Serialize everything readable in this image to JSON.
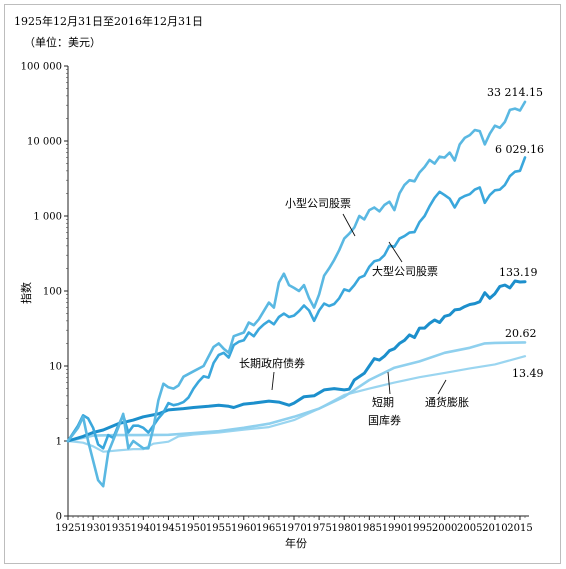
{
  "chart_data": {
    "type": "line",
    "title": "1925年12月31日至2016年12月31日",
    "subtitle": "（单位：美元）",
    "xlabel": "年份",
    "ylabel": "指数",
    "yscale": "log",
    "xlim": [
      1925,
      2016
    ],
    "ylim": [
      0,
      100000
    ],
    "x_ticks": [
      "1925",
      "1930",
      "1935",
      "1940",
      "1945",
      "1950",
      "1955",
      "1960",
      "1965",
      "1970",
      "1975",
      "1980",
      "1985",
      "1990",
      "1995",
      "2000",
      "2005",
      "2010",
      "2015"
    ],
    "y_ticks": [
      {
        "value": 100000,
        "label": "100 000"
      },
      {
        "value": 10000,
        "label": "10 000"
      },
      {
        "value": 1000,
        "label": "1 000"
      },
      {
        "value": 100,
        "label": "100"
      },
      {
        "value": 10,
        "label": "10"
      },
      {
        "value": 1,
        "label": "1"
      },
      {
        "value": 0,
        "label": "0"
      }
    ],
    "colors": {
      "small_stocks": "#5ab8e2",
      "large_stocks": "#3aa7dc",
      "long_bonds": "#1c8fcc",
      "t_bills": "#8fd0ee",
      "inflation": "#9ad5f0"
    },
    "series": [
      {
        "key": "small_stocks",
        "name": "小型公司股票",
        "end_label": "33 214.15",
        "points": [
          [
            1925,
            1
          ],
          [
            1927,
            1.5
          ],
          [
            1928,
            2.1
          ],
          [
            1929,
            1.0
          ],
          [
            1931,
            0.3
          ],
          [
            1932,
            0.25
          ],
          [
            1933,
            0.7
          ],
          [
            1935,
            1.5
          ],
          [
            1936,
            2.3
          ],
          [
            1937,
            0.8
          ],
          [
            1938,
            1.0
          ],
          [
            1940,
            0.8
          ],
          [
            1941,
            0.8
          ],
          [
            1942,
            1.5
          ],
          [
            1943,
            3.5
          ],
          [
            1944,
            5.8
          ],
          [
            1945,
            5.2
          ],
          [
            1946,
            5.0
          ],
          [
            1947,
            5.5
          ],
          [
            1948,
            7.2
          ],
          [
            1950,
            8.5
          ],
          [
            1952,
            10
          ],
          [
            1954,
            18
          ],
          [
            1955,
            20
          ],
          [
            1956,
            17
          ],
          [
            1957,
            15
          ],
          [
            1958,
            25
          ],
          [
            1960,
            28
          ],
          [
            1961,
            38
          ],
          [
            1962,
            35
          ],
          [
            1963,
            42
          ],
          [
            1965,
            70
          ],
          [
            1966,
            60
          ],
          [
            1967,
            130
          ],
          [
            1968,
            170
          ],
          [
            1969,
            120
          ],
          [
            1970,
            110
          ],
          [
            1971,
            100
          ],
          [
            1972,
            120
          ],
          [
            1973,
            80
          ],
          [
            1974,
            60
          ],
          [
            1975,
            90
          ],
          [
            1976,
            160
          ],
          [
            1977,
            200
          ],
          [
            1978,
            260
          ],
          [
            1979,
            350
          ],
          [
            1980,
            500
          ],
          [
            1981,
            580
          ],
          [
            1982,
            700
          ],
          [
            1983,
            1000
          ],
          [
            1984,
            900
          ],
          [
            1985,
            1200
          ],
          [
            1986,
            1300
          ],
          [
            1987,
            1150
          ],
          [
            1988,
            1400
          ],
          [
            1989,
            1550
          ],
          [
            1990,
            1200
          ],
          [
            1991,
            2000
          ],
          [
            1992,
            2600
          ],
          [
            1993,
            3000
          ],
          [
            1994,
            2900
          ],
          [
            1995,
            3800
          ],
          [
            1996,
            4500
          ],
          [
            1997,
            5600
          ],
          [
            1998,
            5000
          ],
          [
            1999,
            6200
          ],
          [
            2000,
            6000
          ],
          [
            2001,
            7000
          ],
          [
            2002,
            5500
          ],
          [
            2003,
            9000
          ],
          [
            2004,
            11000
          ],
          [
            2005,
            12000
          ],
          [
            2006,
            14000
          ],
          [
            2007,
            13500
          ],
          [
            2008,
            9000
          ],
          [
            2009,
            12500
          ],
          [
            2010,
            16000
          ],
          [
            2011,
            15000
          ],
          [
            2012,
            18000
          ],
          [
            2013,
            26000
          ],
          [
            2014,
            27000
          ],
          [
            2015,
            25500
          ],
          [
            2016,
            33214.15
          ]
        ]
      },
      {
        "key": "large_stocks",
        "name": "大型公司股票",
        "end_label": "6 029.16",
        "points": [
          [
            1925,
            1
          ],
          [
            1927,
            1.6
          ],
          [
            1928,
            2.2
          ],
          [
            1929,
            2.0
          ],
          [
            1930,
            1.5
          ],
          [
            1931,
            0.9
          ],
          [
            1932,
            0.8
          ],
          [
            1933,
            1.2
          ],
          [
            1934,
            1.1
          ],
          [
            1935,
            1.6
          ],
          [
            1936,
            2.2
          ],
          [
            1937,
            1.3
          ],
          [
            1938,
            1.6
          ],
          [
            1939,
            1.6
          ],
          [
            1940,
            1.5
          ],
          [
            1941,
            1.3
          ],
          [
            1942,
            1.6
          ],
          [
            1943,
            2.0
          ],
          [
            1944,
            2.4
          ],
          [
            1945,
            3.2
          ],
          [
            1946,
            3.0
          ],
          [
            1947,
            3.1
          ],
          [
            1948,
            3.3
          ],
          [
            1949,
            3.8
          ],
          [
            1950,
            5.0
          ],
          [
            1951,
            6.2
          ],
          [
            1952,
            7.3
          ],
          [
            1953,
            7.0
          ],
          [
            1954,
            11
          ],
          [
            1955,
            14
          ],
          [
            1956,
            15
          ],
          [
            1957,
            13
          ],
          [
            1958,
            19
          ],
          [
            1959,
            21
          ],
          [
            1960,
            22
          ],
          [
            1961,
            28
          ],
          [
            1962,
            25
          ],
          [
            1963,
            31
          ],
          [
            1964,
            36
          ],
          [
            1965,
            40
          ],
          [
            1966,
            36
          ],
          [
            1967,
            45
          ],
          [
            1968,
            50
          ],
          [
            1969,
            45
          ],
          [
            1970,
            47
          ],
          [
            1971,
            54
          ],
          [
            1972,
            64
          ],
          [
            1973,
            55
          ],
          [
            1974,
            40
          ],
          [
            1975,
            55
          ],
          [
            1976,
            68
          ],
          [
            1977,
            63
          ],
          [
            1978,
            67
          ],
          [
            1979,
            80
          ],
          [
            1980,
            105
          ],
          [
            1981,
            100
          ],
          [
            1982,
            120
          ],
          [
            1983,
            150
          ],
          [
            1984,
            160
          ],
          [
            1985,
            210
          ],
          [
            1986,
            250
          ],
          [
            1987,
            260
          ],
          [
            1988,
            300
          ],
          [
            1989,
            400
          ],
          [
            1990,
            390
          ],
          [
            1991,
            500
          ],
          [
            1992,
            540
          ],
          [
            1993,
            600
          ],
          [
            1994,
            610
          ],
          [
            1995,
            830
          ],
          [
            1996,
            1000
          ],
          [
            1997,
            1350
          ],
          [
            1998,
            1750
          ],
          [
            1999,
            2100
          ],
          [
            2000,
            1900
          ],
          [
            2001,
            1700
          ],
          [
            2002,
            1300
          ],
          [
            2003,
            1700
          ],
          [
            2004,
            1850
          ],
          [
            2005,
            1950
          ],
          [
            2006,
            2250
          ],
          [
            2007,
            2400
          ],
          [
            2008,
            1500
          ],
          [
            2009,
            1900
          ],
          [
            2010,
            2200
          ],
          [
            2011,
            2250
          ],
          [
            2012,
            2600
          ],
          [
            2013,
            3400
          ],
          [
            2014,
            3900
          ],
          [
            2015,
            4000
          ],
          [
            2016,
            6029.16
          ]
        ]
      },
      {
        "key": "long_bonds",
        "name": "长期政府债券",
        "end_label": "133.19",
        "points": [
          [
            1925,
            1
          ],
          [
            1928,
            1.15
          ],
          [
            1930,
            1.3
          ],
          [
            1932,
            1.4
          ],
          [
            1935,
            1.7
          ],
          [
            1938,
            1.9
          ],
          [
            1940,
            2.1
          ],
          [
            1943,
            2.3
          ],
          [
            1945,
            2.6
          ],
          [
            1948,
            2.7
          ],
          [
            1950,
            2.8
          ],
          [
            1953,
            2.9
          ],
          [
            1955,
            3.0
          ],
          [
            1957,
            2.9
          ],
          [
            1958,
            2.8
          ],
          [
            1960,
            3.1
          ],
          [
            1962,
            3.2
          ],
          [
            1965,
            3.4
          ],
          [
            1967,
            3.3
          ],
          [
            1969,
            3.0
          ],
          [
            1970,
            3.2
          ],
          [
            1972,
            3.9
          ],
          [
            1974,
            4.0
          ],
          [
            1976,
            4.8
          ],
          [
            1978,
            5.0
          ],
          [
            1980,
            4.8
          ],
          [
            1981,
            4.9
          ],
          [
            1982,
            6.5
          ],
          [
            1984,
            8
          ],
          [
            1985,
            10
          ],
          [
            1986,
            12.5
          ],
          [
            1987,
            12
          ],
          [
            1988,
            13.5
          ],
          [
            1989,
            16
          ],
          [
            1990,
            17
          ],
          [
            1991,
            20
          ],
          [
            1992,
            22
          ],
          [
            1993,
            26
          ],
          [
            1994,
            24
          ],
          [
            1995,
            32
          ],
          [
            1996,
            32
          ],
          [
            1997,
            37
          ],
          [
            1998,
            41
          ],
          [
            1999,
            38
          ],
          [
            2000,
            46
          ],
          [
            2001,
            48
          ],
          [
            2002,
            56
          ],
          [
            2003,
            57
          ],
          [
            2004,
            62
          ],
          [
            2005,
            66
          ],
          [
            2006,
            68
          ],
          [
            2007,
            72
          ],
          [
            2008,
            95
          ],
          [
            2009,
            80
          ],
          [
            2010,
            92
          ],
          [
            2011,
            115
          ],
          [
            2012,
            120
          ],
          [
            2013,
            110
          ],
          [
            2014,
            136
          ],
          [
            2015,
            132
          ],
          [
            2016,
            133.19
          ]
        ]
      },
      {
        "key": "t_bills",
        "name": "短期国库券",
        "end_label": "20.62",
        "points": [
          [
            1925,
            1
          ],
          [
            1930,
            1.18
          ],
          [
            1935,
            1.2
          ],
          [
            1940,
            1.2
          ],
          [
            1945,
            1.21
          ],
          [
            1950,
            1.28
          ],
          [
            1955,
            1.35
          ],
          [
            1960,
            1.5
          ],
          [
            1965,
            1.7
          ],
          [
            1970,
            2.1
          ],
          [
            1975,
            2.7
          ],
          [
            1980,
            3.9
          ],
          [
            1985,
            6.5
          ],
          [
            1990,
            9.5
          ],
          [
            1995,
            11.5
          ],
          [
            2000,
            15
          ],
          [
            2005,
            17.5
          ],
          [
            2008,
            20
          ],
          [
            2010,
            20.3
          ],
          [
            2016,
            20.62
          ]
        ]
      },
      {
        "key": "inflation",
        "name": "通货膨胀",
        "end_label": "13.49",
        "points": [
          [
            1925,
            1
          ],
          [
            1928,
            0.95
          ],
          [
            1930,
            0.85
          ],
          [
            1932,
            0.72
          ],
          [
            1933,
            0.73
          ],
          [
            1935,
            0.75
          ],
          [
            1938,
            0.78
          ],
          [
            1940,
            0.78
          ],
          [
            1942,
            0.92
          ],
          [
            1945,
            0.98
          ],
          [
            1947,
            1.15
          ],
          [
            1950,
            1.22
          ],
          [
            1955,
            1.3
          ],
          [
            1960,
            1.42
          ],
          [
            1965,
            1.53
          ],
          [
            1970,
            1.9
          ],
          [
            1975,
            2.7
          ],
          [
            1980,
            4.1
          ],
          [
            1985,
            5.0
          ],
          [
            1990,
            6.0
          ],
          [
            1995,
            7.1
          ],
          [
            2000,
            8.1
          ],
          [
            2005,
            9.3
          ],
          [
            2010,
            10.5
          ],
          [
            2016,
            13.49
          ]
        ]
      }
    ]
  }
}
